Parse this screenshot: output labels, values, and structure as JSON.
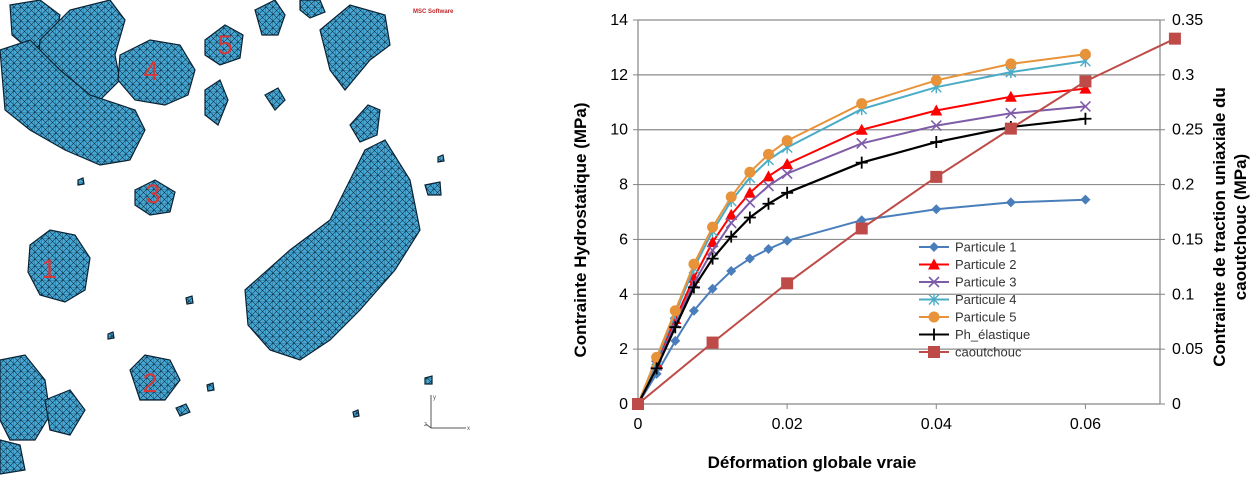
{
  "mesh_view": {
    "brand_text": "MSC Software",
    "particle_labels": [
      "1",
      "2",
      "3",
      "4",
      "5"
    ],
    "triad": {
      "y": "y",
      "z": "z",
      "x": "x"
    }
  },
  "chart_data": {
    "type": "line",
    "title": "",
    "xlabel": "Déformation globale vraie",
    "ylabel": "Contrainte  Hydrostatique  (MPa)",
    "y2label_line1": "Contrainte de traction uniaxiale du",
    "y2label_line2": "caoutchouc (MPa)",
    "xlim": [
      0,
      0.07
    ],
    "ylim": [
      0,
      14
    ],
    "y2lim": [
      0,
      0.35
    ],
    "x_ticks": [
      "0",
      "0.02",
      "0.04",
      "0.06"
    ],
    "y_ticks": [
      "0",
      "2",
      "4",
      "6",
      "8",
      "10",
      "12",
      "14"
    ],
    "y2_ticks": [
      "0",
      "0.05",
      "0.1",
      "0.15",
      "0.2",
      "0.25",
      "0.3",
      "0.35"
    ],
    "grid": "horizontal",
    "legend_position": "right",
    "series": [
      {
        "name": "Particule 1",
        "axis": "left",
        "color": "#4a7ebb",
        "marker": "diamond",
        "x": [
          0,
          0.0025,
          0.005,
          0.0075,
          0.01,
          0.0125,
          0.015,
          0.0175,
          0.02,
          0.03,
          0.04,
          0.05,
          0.06
        ],
        "y": [
          0,
          1.1,
          2.3,
          3.4,
          4.2,
          4.85,
          5.3,
          5.65,
          5.95,
          6.7,
          7.1,
          7.35,
          7.45
        ]
      },
      {
        "name": "Particule 2",
        "axis": "left",
        "color": "#ff0000",
        "marker": "triangle",
        "x": [
          0,
          0.0025,
          0.005,
          0.0075,
          0.01,
          0.0125,
          0.015,
          0.0175,
          0.02,
          0.03,
          0.04,
          0.05,
          0.06
        ],
        "y": [
          0,
          1.5,
          3.1,
          4.6,
          5.9,
          6.9,
          7.7,
          8.3,
          8.75,
          10.0,
          10.7,
          11.2,
          11.5
        ]
      },
      {
        "name": "Particule 3",
        "axis": "left",
        "color": "#7e5ca8",
        "marker": "x",
        "x": [
          0,
          0.0025,
          0.005,
          0.0075,
          0.01,
          0.0125,
          0.015,
          0.0175,
          0.02,
          0.03,
          0.04,
          0.05,
          0.06
        ],
        "y": [
          0,
          1.4,
          2.95,
          4.4,
          5.6,
          6.6,
          7.35,
          7.95,
          8.4,
          9.5,
          10.15,
          10.6,
          10.85
        ]
      },
      {
        "name": "Particule 4",
        "axis": "left",
        "color": "#4bacc6",
        "marker": "star",
        "x": [
          0,
          0.0025,
          0.005,
          0.0075,
          0.01,
          0.0125,
          0.015,
          0.0175,
          0.02,
          0.03,
          0.04,
          0.05,
          0.06
        ],
        "y": [
          0,
          1.6,
          3.3,
          4.95,
          6.3,
          7.4,
          8.25,
          8.9,
          9.35,
          10.75,
          11.55,
          12.1,
          12.5
        ]
      },
      {
        "name": "Particule 5",
        "axis": "left",
        "color": "#e8933a",
        "marker": "circle",
        "x": [
          0,
          0.0025,
          0.005,
          0.0075,
          0.01,
          0.0125,
          0.015,
          0.0175,
          0.02,
          0.03,
          0.04,
          0.05,
          0.06
        ],
        "y": [
          0,
          1.7,
          3.4,
          5.1,
          6.45,
          7.55,
          8.45,
          9.1,
          9.6,
          10.95,
          11.8,
          12.4,
          12.75
        ]
      },
      {
        "name": "Ph_élastique",
        "axis": "left",
        "color": "#000000",
        "marker": "plus",
        "x": [
          0,
          0.0025,
          0.005,
          0.0075,
          0.01,
          0.0125,
          0.015,
          0.0175,
          0.02,
          0.03,
          0.04,
          0.05,
          0.06
        ],
        "y": [
          0,
          1.3,
          2.8,
          4.25,
          5.3,
          6.1,
          6.8,
          7.3,
          7.7,
          8.8,
          9.55,
          10.1,
          10.4
        ]
      },
      {
        "name": "caoutchouc",
        "axis": "right",
        "color": "#be4b48",
        "marker": "square",
        "x": [
          0,
          0.01,
          0.02,
          0.03,
          0.04,
          0.05,
          0.06,
          0.072
        ],
        "y": [
          0,
          0.056,
          0.11,
          0.16,
          0.207,
          0.251,
          0.294,
          0.333
        ]
      }
    ]
  }
}
